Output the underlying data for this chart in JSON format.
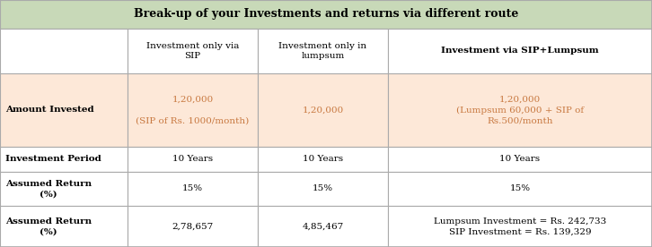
{
  "title": "Break-up of your Investments and returns via different route",
  "title_bg": "#c8d9b8",
  "header_bg": "#ffffff",
  "row_bg_alt": "#fde8d8",
  "row_bg_white": "#ffffff",
  "col_headers": [
    "",
    "Investment only via\nSIP",
    "Investment only in\nlumpsum",
    "Investment via SIP+Lumpsum"
  ],
  "col_header_bold": [
    false,
    false,
    false,
    true
  ],
  "rows": [
    {
      "label": "Amount Invested",
      "sip": "1,20,000\n\n(SIP of Rs. 1000/month)",
      "lumpsum": "1,20,000",
      "combined": "1,20,000\n(Lumpsum 60,000 + SIP of\nRs.500/month",
      "bg": "#fde8d8",
      "label_bold": true,
      "sip_color": "#c87941",
      "lumpsum_color": "#c87941",
      "combined_color": "#c87941"
    },
    {
      "label": "Investment Period",
      "sip": "10 Years",
      "lumpsum": "10 Years",
      "combined": "10 Years",
      "bg": "#ffffff",
      "label_bold": true,
      "sip_color": "#000000",
      "lumpsum_color": "#000000",
      "combined_color": "#000000"
    },
    {
      "label": "Assumed Return\n(%)",
      "sip": "15%",
      "lumpsum": "15%",
      "combined": "15%",
      "bg": "#ffffff",
      "label_bold": true,
      "sip_color": "#000000",
      "lumpsum_color": "#000000",
      "combined_color": "#000000"
    },
    {
      "label": "Assumed Return\n(%)",
      "sip": "2,78,657",
      "lumpsum": "4,85,467",
      "combined": "Lumpsum Investment = Rs. 242,733\nSIP Investment = Rs. 139,329",
      "bg": "#ffffff",
      "label_bold": true,
      "sip_color": "#000000",
      "lumpsum_color": "#000000",
      "combined_color": "#000000"
    }
  ],
  "font_family": "serif",
  "title_fontsize": 9.0,
  "header_fontsize": 7.5,
  "cell_fontsize": 7.5,
  "border_color": "#aaaaaa"
}
